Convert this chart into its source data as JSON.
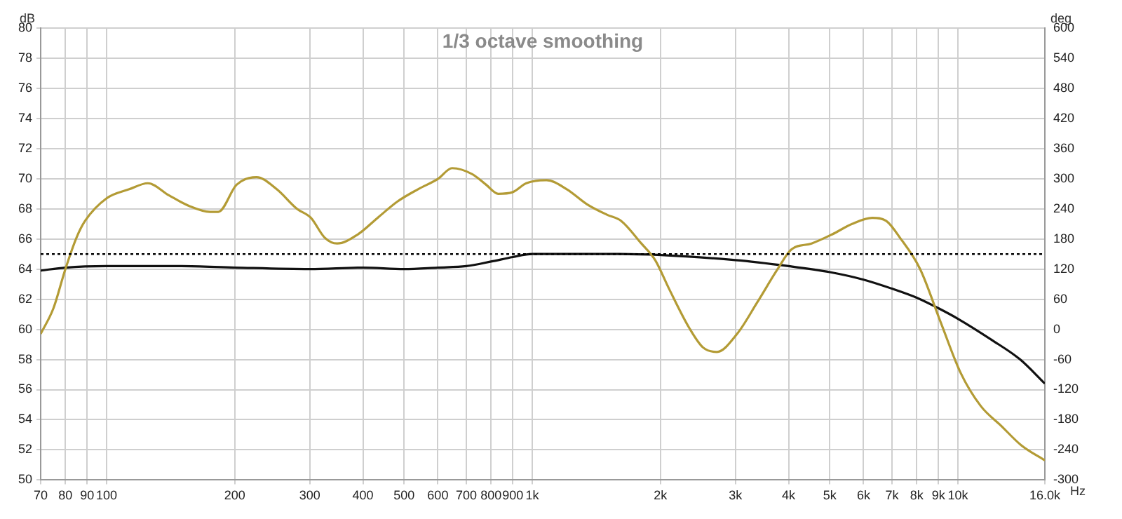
{
  "chart_data": {
    "type": "line",
    "title": "1/3 octave smoothing",
    "xlabel": "Hz",
    "ylabel": "dB",
    "y2label": "deg",
    "log": "x",
    "grid": true,
    "legend": false,
    "marker": "none",
    "line_style": "solid",
    "xlim": [
      70,
      16000
    ],
    "xticks": [
      70,
      80,
      90,
      100,
      200,
      300,
      400,
      500,
      600,
      700,
      800,
      900,
      {
        "value": 1000,
        "label": "1k"
      },
      {
        "value": 2000,
        "label": "2k"
      },
      {
        "value": 3000,
        "label": "3k"
      },
      {
        "value": 4000,
        "label": "4k"
      },
      {
        "value": 5000,
        "label": "5k"
      },
      {
        "value": 6000,
        "label": "6k"
      },
      {
        "value": 7000,
        "label": "7k"
      },
      {
        "value": 8000,
        "label": "8k"
      },
      {
        "value": 9000,
        "label": "9k"
      },
      {
        "value": 10000,
        "label": "10k"
      },
      {
        "value": 16000,
        "label": "16.0k"
      }
    ],
    "ylim": [
      50,
      80
    ],
    "yticks": [
      50,
      52,
      54,
      56,
      58,
      60,
      62,
      64,
      66,
      68,
      70,
      72,
      74,
      76,
      78,
      80
    ],
    "y2lim": [
      -300,
      600
    ],
    "y2ticks": [
      -300,
      -240,
      -180,
      -120,
      -60,
      0,
      60,
      120,
      180,
      240,
      300,
      360,
      420,
      480,
      540,
      600
    ],
    "ref_lines": [
      {
        "axis": "y",
        "value": 65,
        "color": "#000000",
        "line_style": "dotted"
      }
    ],
    "series": [
      {
        "color": "#b39b35",
        "x": [
          70,
          75,
          80,
          85,
          89,
          100,
          113,
          125,
          140,
          156,
          175,
          183,
          202,
          225,
          251,
          280,
          302,
          325,
          348,
          389,
          433,
          483,
          539,
          601,
          648,
          723,
          779,
          832,
          898,
          968,
          1080,
          1205,
          1345,
          1500,
          1617,
          1804,
          1944,
          2095,
          2337,
          2518,
          2714,
          3028,
          3378,
          3770,
          4060,
          4530,
          5060,
          5640,
          6290,
          6780,
          7300,
          8150,
          9100,
          10150,
          11320,
          12630,
          14090,
          16000
        ],
        "values": [
          59.7,
          61.4,
          64.0,
          66.1,
          67.2,
          68.7,
          69.3,
          69.7,
          68.9,
          68.2,
          67.8,
          67.8,
          69.6,
          70.1,
          69.3,
          68.0,
          67.4,
          66.1,
          65.7,
          66.3,
          67.4,
          68.5,
          69.3,
          70.0,
          70.7,
          70.3,
          69.6,
          69.0,
          69.1,
          69.7,
          69.9,
          69.3,
          68.3,
          67.6,
          67.2,
          65.7,
          64.6,
          62.7,
          60.1,
          58.8,
          58.5,
          59.7,
          61.8,
          64.0,
          65.3,
          65.7,
          66.3,
          67.0,
          67.4,
          67.2,
          66.1,
          64.0,
          60.5,
          57.1,
          54.9,
          53.6,
          52.3,
          51.3
        ]
      },
      {
        "color": "#111111",
        "x": [
          70,
          80,
          100,
          150,
          200,
          300,
          400,
          500,
          600,
          700,
          800,
          900,
          1000,
          1600,
          3000,
          4000,
          5000,
          6000,
          7000,
          8000,
          9000,
          10000,
          12000,
          14000,
          16000
        ],
        "values": [
          63.9,
          64.1,
          64.2,
          64.2,
          64.1,
          64.0,
          64.1,
          64.0,
          64.1,
          64.2,
          64.5,
          64.8,
          65.0,
          65.0,
          64.6,
          64.2,
          63.8,
          63.3,
          62.7,
          62.1,
          61.4,
          60.7,
          59.3,
          58.0,
          56.4
        ]
      }
    ]
  }
}
